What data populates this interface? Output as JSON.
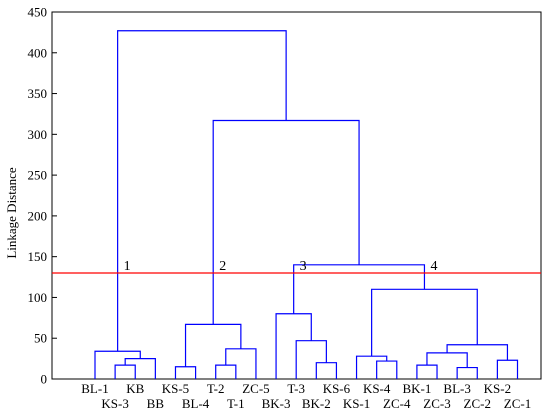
{
  "chart_data": {
    "type": "dendrogram",
    "ylabel": "Linkage Distance",
    "ylim": [
      0,
      450
    ],
    "yticks": [
      0,
      50,
      100,
      150,
      200,
      250,
      300,
      350,
      400,
      450
    ],
    "leaves": [
      "BL-1",
      "KS-3",
      "KB",
      "BB",
      "KS-5",
      "BL-4",
      "T-2",
      "T-1",
      "ZC-5",
      "BK-3",
      "T-3",
      "BK-2",
      "KS-6",
      "KS-1",
      "KS-4",
      "ZC-4",
      "BK-1",
      "ZC-3",
      "BL-3",
      "ZC-2",
      "KS-2",
      "ZC-1"
    ],
    "merges": [
      {
        "left": "L1",
        "right": "L2",
        "height": 17,
        "id": "m1"
      },
      {
        "left": "m1",
        "right": "L3",
        "height": 25,
        "id": "m2"
      },
      {
        "left": "L0",
        "right": "m2",
        "height": 34,
        "id": "m3"
      },
      {
        "left": "L4",
        "right": "L5",
        "height": 15,
        "id": "m4"
      },
      {
        "left": "L6",
        "right": "L7",
        "height": 17,
        "id": "m5"
      },
      {
        "left": "m5",
        "right": "L8",
        "height": 37,
        "id": "m6"
      },
      {
        "left": "m4",
        "right": "m6",
        "height": 67,
        "id": "m7"
      },
      {
        "left": "L11",
        "right": "L12",
        "height": 20,
        "id": "m8"
      },
      {
        "left": "L10",
        "right": "m8",
        "height": 47,
        "id": "m9"
      },
      {
        "left": "L9",
        "right": "m9",
        "height": 80,
        "id": "m10"
      },
      {
        "left": "L14",
        "right": "L15",
        "height": 22,
        "id": "m11"
      },
      {
        "left": "L13",
        "right": "m11",
        "height": 28,
        "id": "m12"
      },
      {
        "left": "L16",
        "right": "L17",
        "height": 17,
        "id": "m13"
      },
      {
        "left": "L18",
        "right": "L19",
        "height": 14,
        "id": "m14"
      },
      {
        "left": "m13",
        "right": "m14",
        "height": 32,
        "id": "m15"
      },
      {
        "left": "L20",
        "right": "L21",
        "height": 23,
        "id": "m16"
      },
      {
        "left": "m15",
        "right": "m16",
        "height": 42,
        "id": "m17"
      },
      {
        "left": "m12",
        "right": "m17",
        "height": 110,
        "id": "m18"
      },
      {
        "left": "m10",
        "right": "m18",
        "height": 140,
        "id": "m19"
      },
      {
        "left": "m7",
        "right": "m19",
        "height": 317,
        "id": "m20"
      },
      {
        "left": "m3",
        "right": "m20",
        "height": 427,
        "id": "m21"
      }
    ],
    "cut_line": {
      "value": 130,
      "color": "#ff0000"
    },
    "cluster_labels": [
      {
        "text": "1",
        "at": "m3"
      },
      {
        "text": "2",
        "at": "m7"
      },
      {
        "text": "3",
        "at": "m10"
      },
      {
        "text": "4",
        "at": "m18"
      }
    ],
    "line_color": "#0000ff",
    "grid": false
  }
}
